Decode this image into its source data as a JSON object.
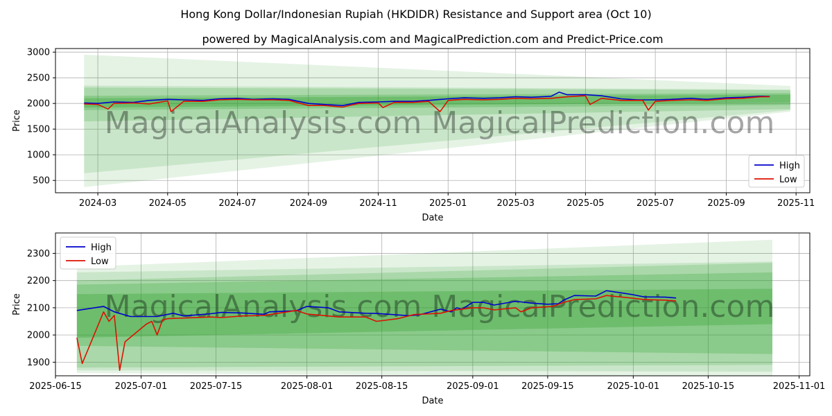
{
  "title": "Hong Kong Dollar/Indonesian Rupiah (HKDIDR) Resistance and Support area (Oct 10)",
  "subtitle": "powered by MagicalAnalysis.com and MagicalPrediction.com and Predict-Price.com",
  "watermarks": [
    "MagicalAnalysis.com",
    "MagicalPrediction.com"
  ],
  "colors": {
    "high": "#0000cc",
    "low": "#dd1100",
    "band": "#2ca02c"
  },
  "chart_data": [
    {
      "type": "line",
      "name": "full-range",
      "xlabel": "Date",
      "ylabel": "Price",
      "xlim": [
        "2024-01-24",
        "2025-11-13"
      ],
      "ylim": [
        260,
        3070
      ],
      "xticks": [
        "2024-03",
        "2024-05",
        "2024-07",
        "2024-09",
        "2024-11",
        "2025-01",
        "2025-03",
        "2025-05",
        "2025-07",
        "2025-09",
        "2025-11"
      ],
      "xtick_dates": [
        "2024-03-01",
        "2024-05-01",
        "2024-07-01",
        "2024-09-01",
        "2024-11-01",
        "2025-01-01",
        "2025-03-01",
        "2025-05-01",
        "2025-07-01",
        "2025-09-01",
        "2025-11-01"
      ],
      "yticks": [
        500,
        1000,
        1500,
        2000,
        2500,
        3000
      ],
      "legend": {
        "position": "lower-right",
        "entries": [
          "High",
          "Low"
        ]
      },
      "bands": [
        {
          "x": [
            "2024-02-18",
            "2025-10-27"
          ],
          "upper": [
            2950,
            2340
          ],
          "lower": [
            370,
            1840
          ],
          "opacity": 0.12
        },
        {
          "x": [
            "2024-02-18",
            "2025-10-27"
          ],
          "upper": [
            2350,
            2270
          ],
          "lower": [
            640,
            1870
          ],
          "opacity": 0.15
        },
        {
          "x": [
            "2024-02-18",
            "2025-10-27"
          ],
          "upper": [
            2310,
            2260
          ],
          "lower": [
            1650,
            1890
          ],
          "opacity": 0.2
        },
        {
          "x": [
            "2024-02-18",
            "2025-10-27"
          ],
          "upper": [
            2150,
            2200
          ],
          "lower": [
            1870,
            1970
          ],
          "opacity": 0.25
        },
        {
          "x": [
            "2024-02-18",
            "2025-10-27"
          ],
          "upper": [
            2100,
            2170
          ],
          "lower": [
            1920,
            2020
          ],
          "opacity": 0.3
        }
      ],
      "series": [
        {
          "name": "High",
          "x": [
            "2024-02-18",
            "2024-03-01",
            "2024-03-15",
            "2024-04-01",
            "2024-04-15",
            "2024-05-01",
            "2024-05-15",
            "2024-06-01",
            "2024-06-15",
            "2024-07-01",
            "2024-07-15",
            "2024-08-01",
            "2024-08-15",
            "2024-09-01",
            "2024-09-15",
            "2024-10-01",
            "2024-10-15",
            "2024-11-01",
            "2024-11-15",
            "2024-12-01",
            "2024-12-15",
            "2025-01-01",
            "2025-01-15",
            "2025-02-01",
            "2025-02-15",
            "2025-03-01",
            "2025-03-15",
            "2025-04-01",
            "2025-04-08",
            "2025-04-15",
            "2025-05-01",
            "2025-05-15",
            "2025-06-01",
            "2025-06-15",
            "2025-07-01",
            "2025-07-15",
            "2025-08-01",
            "2025-08-15",
            "2025-09-01",
            "2025-09-15",
            "2025-10-01",
            "2025-10-09"
          ],
          "y": [
            2010,
            2000,
            2030,
            2020,
            2060,
            2080,
            2070,
            2060,
            2090,
            2100,
            2080,
            2090,
            2080,
            2000,
            1980,
            1960,
            2020,
            2030,
            2040,
            2040,
            2060,
            2090,
            2110,
            2100,
            2110,
            2130,
            2120,
            2140,
            2220,
            2170,
            2170,
            2150,
            2090,
            2070,
            2070,
            2080,
            2100,
            2080,
            2110,
            2120,
            2140,
            2135
          ]
        },
        {
          "name": "Low",
          "x": [
            "2024-02-18",
            "2024-03-01",
            "2024-03-10",
            "2024-03-15",
            "2024-04-01",
            "2024-04-15",
            "2024-05-01",
            "2024-05-04",
            "2024-05-15",
            "2024-06-01",
            "2024-06-15",
            "2024-07-01",
            "2024-07-15",
            "2024-08-01",
            "2024-08-15",
            "2024-09-01",
            "2024-09-15",
            "2024-10-01",
            "2024-10-15",
            "2024-11-01",
            "2024-11-05",
            "2024-11-15",
            "2024-12-01",
            "2024-12-15",
            "2024-12-25",
            "2025-01-01",
            "2025-01-15",
            "2025-02-01",
            "2025-02-15",
            "2025-03-01",
            "2025-03-15",
            "2025-04-01",
            "2025-04-15",
            "2025-05-01",
            "2025-05-05",
            "2025-05-15",
            "2025-06-01",
            "2025-06-20",
            "2025-06-25",
            "2025-07-01",
            "2025-07-15",
            "2025-08-01",
            "2025-08-15",
            "2025-09-01",
            "2025-09-15",
            "2025-10-01",
            "2025-10-09"
          ],
          "y": [
            1990,
            1980,
            1890,
            2000,
            2010,
            1990,
            2050,
            1840,
            2040,
            2040,
            2070,
            2080,
            2070,
            2070,
            2060,
            1960,
            1960,
            1930,
            2000,
            2010,
            1920,
            2020,
            2020,
            2040,
            1840,
            2060,
            2080,
            2070,
            2080,
            2100,
            2090,
            2100,
            2130,
            2150,
            1980,
            2100,
            2060,
            2060,
            1870,
            2040,
            2060,
            2070,
            2060,
            2090,
            2100,
            2130,
            2130
          ]
        }
      ]
    },
    {
      "type": "line",
      "name": "zoomed-range",
      "xlabel": "Date",
      "ylabel": "Price",
      "xlim": [
        "2025-06-15",
        "2025-11-03"
      ],
      "ylim": [
        1850,
        2375
      ],
      "xticks": [
        "2025-06-15",
        "2025-07-01",
        "2025-07-15",
        "2025-08-01",
        "2025-08-15",
        "2025-09-01",
        "2025-09-15",
        "2025-10-01",
        "2025-10-15",
        "2025-11-01"
      ],
      "yticks": [
        1900,
        2000,
        2100,
        2200,
        2300
      ],
      "legend": {
        "position": "top-left",
        "entries": [
          "High",
          "Low"
        ]
      },
      "bands": [
        {
          "x": [
            "2025-06-19",
            "2025-10-27"
          ],
          "upper": [
            2250,
            2350
          ],
          "lower": [
            1860,
            1845
          ],
          "opacity": 0.12
        },
        {
          "x": [
            "2025-06-19",
            "2025-10-27"
          ],
          "upper": [
            2230,
            2270
          ],
          "lower": [
            1870,
            1865
          ],
          "opacity": 0.15
        },
        {
          "x": [
            "2025-06-19",
            "2025-10-27"
          ],
          "upper": [
            2200,
            2265
          ],
          "lower": [
            1880,
            1890
          ],
          "opacity": 0.2
        },
        {
          "x": [
            "2025-06-19",
            "2025-10-27"
          ],
          "upper": [
            2185,
            2230
          ],
          "lower": [
            1960,
            1930
          ],
          "opacity": 0.25
        },
        {
          "x": [
            "2025-06-19",
            "2025-10-27"
          ],
          "upper": [
            2150,
            2170
          ],
          "lower": [
            1990,
            2040
          ],
          "opacity": 0.3
        }
      ],
      "series": [
        {
          "name": "High",
          "x": [
            "2025-06-19",
            "2025-06-24",
            "2025-06-26",
            "2025-06-29",
            "2025-07-04",
            "2025-07-07",
            "2025-07-09",
            "2025-07-14",
            "2025-07-16",
            "2025-07-20",
            "2025-07-24",
            "2025-07-25",
            "2025-07-30",
            "2025-08-01",
            "2025-08-05",
            "2025-08-07",
            "2025-08-12",
            "2025-08-14",
            "2025-08-20",
            "2025-08-22",
            "2025-08-26",
            "2025-08-28",
            "2025-08-29",
            "2025-08-30",
            "2025-09-01",
            "2025-09-03",
            "2025-09-05",
            "2025-09-09",
            "2025-09-12",
            "2025-09-15",
            "2025-09-17",
            "2025-09-18",
            "2025-09-20",
            "2025-09-24",
            "2025-09-26",
            "2025-10-01",
            "2025-10-03",
            "2025-10-07",
            "2025-10-09"
          ],
          "y": [
            2090,
            2105,
            2085,
            2068,
            2068,
            2080,
            2070,
            2078,
            2083,
            2081,
            2076,
            2085,
            2089,
            2105,
            2100,
            2085,
            2080,
            2079,
            2071,
            2074,
            2095,
            2085,
            2100,
            2095,
            2120,
            2120,
            2110,
            2124,
            2117,
            2113,
            2115,
            2128,
            2145,
            2143,
            2163,
            2148,
            2140,
            2139,
            2136
          ]
        },
        {
          "name": "Low",
          "x": [
            "2025-06-19",
            "2025-06-20",
            "2025-06-24",
            "2025-06-25",
            "2025-06-26",
            "2025-06-27",
            "2025-06-28",
            "2025-07-02",
            "2025-07-03",
            "2025-07-04",
            "2025-07-05",
            "2025-07-06",
            "2025-07-10",
            "2025-07-14",
            "2025-07-16",
            "2025-07-20",
            "2025-07-24",
            "2025-07-30",
            "2025-08-01",
            "2025-08-05",
            "2025-08-07",
            "2025-08-12",
            "2025-08-14",
            "2025-08-18",
            "2025-08-21",
            "2025-08-26",
            "2025-08-28",
            "2025-09-01",
            "2025-09-03",
            "2025-09-05",
            "2025-09-09",
            "2025-09-10",
            "2025-09-12",
            "2025-09-16",
            "2025-09-18",
            "2025-09-20",
            "2025-09-24",
            "2025-09-26",
            "2025-10-01",
            "2025-10-03",
            "2025-10-07",
            "2025-10-09"
          ],
          "y": [
            1990,
            1895,
            2085,
            2050,
            2072,
            1870,
            1975,
            2040,
            2050,
            2000,
            2055,
            2060,
            2063,
            2066,
            2064,
            2070,
            2072,
            2090,
            2077,
            2070,
            2066,
            2066,
            2050,
            2060,
            2075,
            2080,
            2090,
            2100,
            2100,
            2092,
            2100,
            2085,
            2100,
            2105,
            2120,
            2130,
            2133,
            2145,
            2135,
            2130,
            2128,
            2125
          ]
        }
      ]
    }
  ]
}
